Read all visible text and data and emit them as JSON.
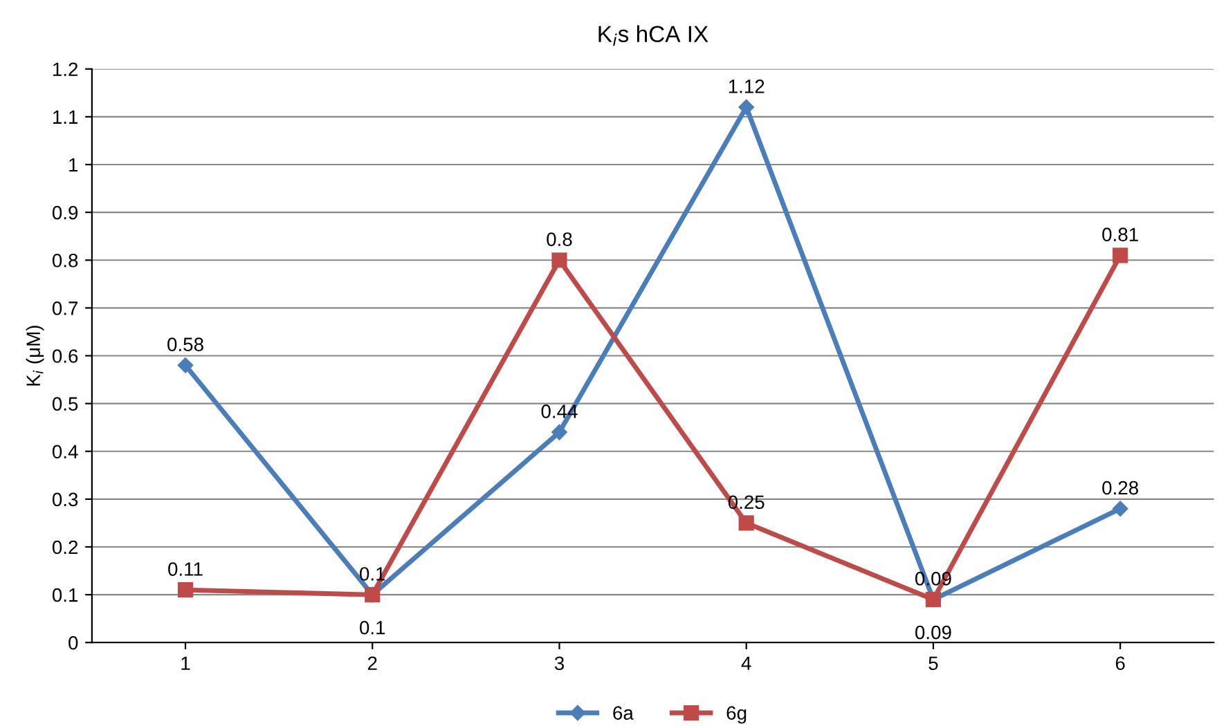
{
  "chart_data": {
    "type": "line",
    "title": "K$_{i}$s hCA IX",
    "ylabel": "K$_{i}$ (μM)",
    "categories": [
      "1",
      "2",
      "3",
      "4",
      "5",
      "6"
    ],
    "series": [
      {
        "name": "6a",
        "color": "#4a7ebb",
        "marker": "diamond",
        "values": [
          0.58,
          0.1,
          0.44,
          1.12,
          0.09,
          0.28
        ]
      },
      {
        "name": "6g",
        "color": "#be4b48",
        "marker": "square",
        "values": [
          0.11,
          0.1,
          0.8,
          0.25,
          0.09,
          0.81
        ]
      }
    ],
    "ylim": [
      0,
      1.2
    ],
    "yticks": [
      0,
      0.1,
      0.2,
      0.3,
      0.4,
      0.5,
      0.6,
      0.7,
      0.8,
      0.9,
      1,
      1.1,
      1.2
    ],
    "grid": "y",
    "legend": "bottom",
    "data_labels": true,
    "line_style": "solid"
  }
}
